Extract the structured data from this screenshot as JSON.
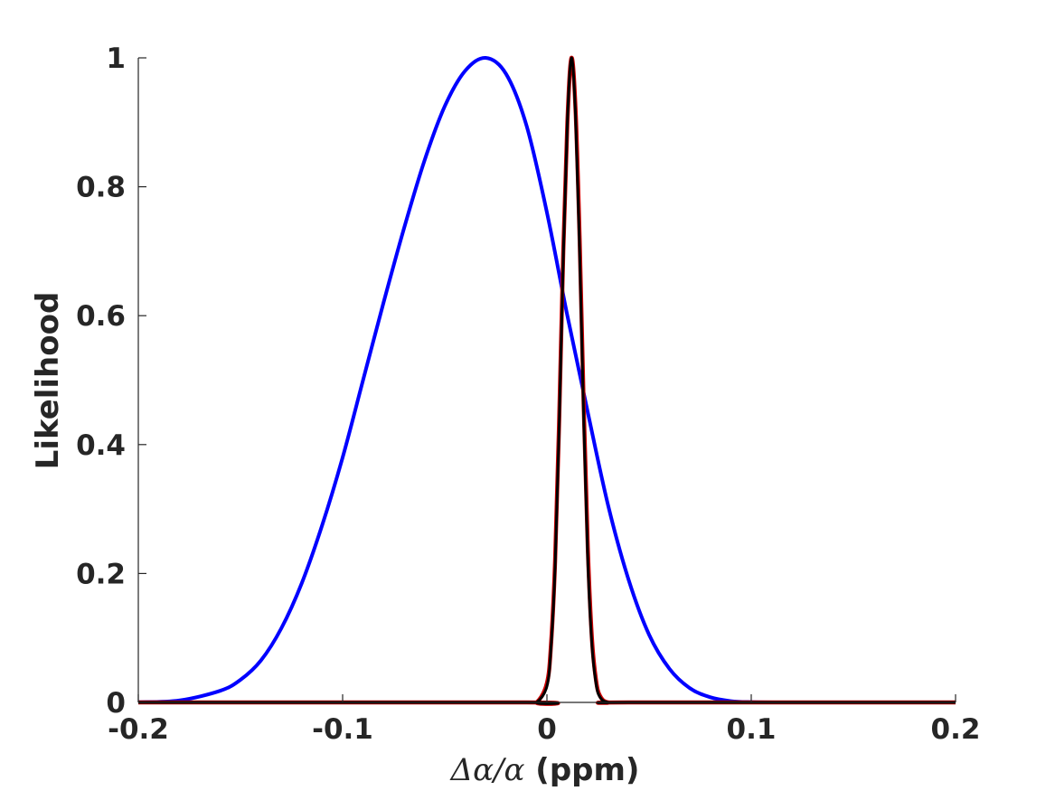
{
  "chart_data": {
    "type": "line",
    "xlabel_math": "Δα/α",
    "xlabel_unit": " (ppm)",
    "ylabel": "Likelihood",
    "xlim": [
      -0.2,
      0.2
    ],
    "ylim": [
      0,
      1
    ],
    "x_ticks": [
      -0.2,
      -0.1,
      0,
      0.1,
      0.2
    ],
    "x_tick_labels": [
      "-0.2",
      "-0.1",
      "0",
      "0.1",
      "0.2"
    ],
    "y_ticks": [
      0,
      0.2,
      0.4,
      0.6,
      0.8,
      1
    ],
    "y_tick_labels": [
      "0",
      "0.2",
      "0.4",
      "0.6",
      "0.8",
      "1"
    ],
    "grid": false,
    "legend": "none",
    "series": [
      {
        "color": "#0000ff",
        "points": [
          [
            -0.2,
            0.0003
          ],
          [
            -0.18,
            0.003
          ],
          [
            -0.16,
            0.018
          ],
          [
            -0.15,
            0.035
          ],
          [
            -0.14,
            0.065
          ],
          [
            -0.13,
            0.115
          ],
          [
            -0.12,
            0.185
          ],
          [
            -0.11,
            0.275
          ],
          [
            -0.1,
            0.38
          ],
          [
            -0.09,
            0.5
          ],
          [
            -0.08,
            0.62
          ],
          [
            -0.07,
            0.735
          ],
          [
            -0.06,
            0.84
          ],
          [
            -0.05,
            0.925
          ],
          [
            -0.04,
            0.98
          ],
          [
            -0.03,
            1.0
          ],
          [
            -0.02,
            0.975
          ],
          [
            -0.01,
            0.895
          ],
          [
            0,
            0.76
          ],
          [
            0.01,
            0.6
          ],
          [
            0.02,
            0.45
          ],
          [
            0.03,
            0.305
          ],
          [
            0.04,
            0.19
          ],
          [
            0.05,
            0.105
          ],
          [
            0.06,
            0.052
          ],
          [
            0.07,
            0.022
          ],
          [
            0.08,
            0.008
          ],
          [
            0.09,
            0.002
          ],
          [
            0.1,
            0.0005
          ],
          [
            0.12,
            0.0
          ],
          [
            0.2,
            0.0
          ]
        ]
      },
      {
        "color": "#cc0000",
        "points": [
          [
            -0.2,
            0.0
          ],
          [
            -0.01,
            0.0
          ],
          [
            -0.005,
            0.0
          ],
          [
            0,
            0.03
          ],
          [
            0.002,
            0.09
          ],
          [
            0.004,
            0.22
          ],
          [
            0.006,
            0.44
          ],
          [
            0.008,
            0.7
          ],
          [
            0.01,
            0.9
          ],
          [
            0.012,
            1.0
          ],
          [
            0.014,
            0.92
          ],
          [
            0.016,
            0.72
          ],
          [
            0.018,
            0.46
          ],
          [
            0.02,
            0.24
          ],
          [
            0.022,
            0.1
          ],
          [
            0.024,
            0.035
          ],
          [
            0.026,
            0.01
          ],
          [
            0.03,
            0.0
          ],
          [
            0.04,
            0.0
          ],
          [
            0.2,
            0.0
          ]
        ]
      },
      {
        "color": "#000000",
        "points": [
          [
            -0.2,
            0.0
          ],
          [
            -0.01,
            0.0
          ],
          [
            -0.005,
            0.0
          ],
          [
            0,
            0.025
          ],
          [
            0.002,
            0.085
          ],
          [
            0.004,
            0.21
          ],
          [
            0.006,
            0.43
          ],
          [
            0.008,
            0.69
          ],
          [
            0.01,
            0.9
          ],
          [
            0.012,
            1.0
          ],
          [
            0.014,
            0.91
          ],
          [
            0.016,
            0.7
          ],
          [
            0.018,
            0.44
          ],
          [
            0.02,
            0.22
          ],
          [
            0.022,
            0.09
          ],
          [
            0.024,
            0.03
          ],
          [
            0.026,
            0.008
          ],
          [
            0.03,
            0.0
          ],
          [
            0.04,
            0.0
          ],
          [
            0.2,
            0.0
          ]
        ]
      }
    ]
  }
}
